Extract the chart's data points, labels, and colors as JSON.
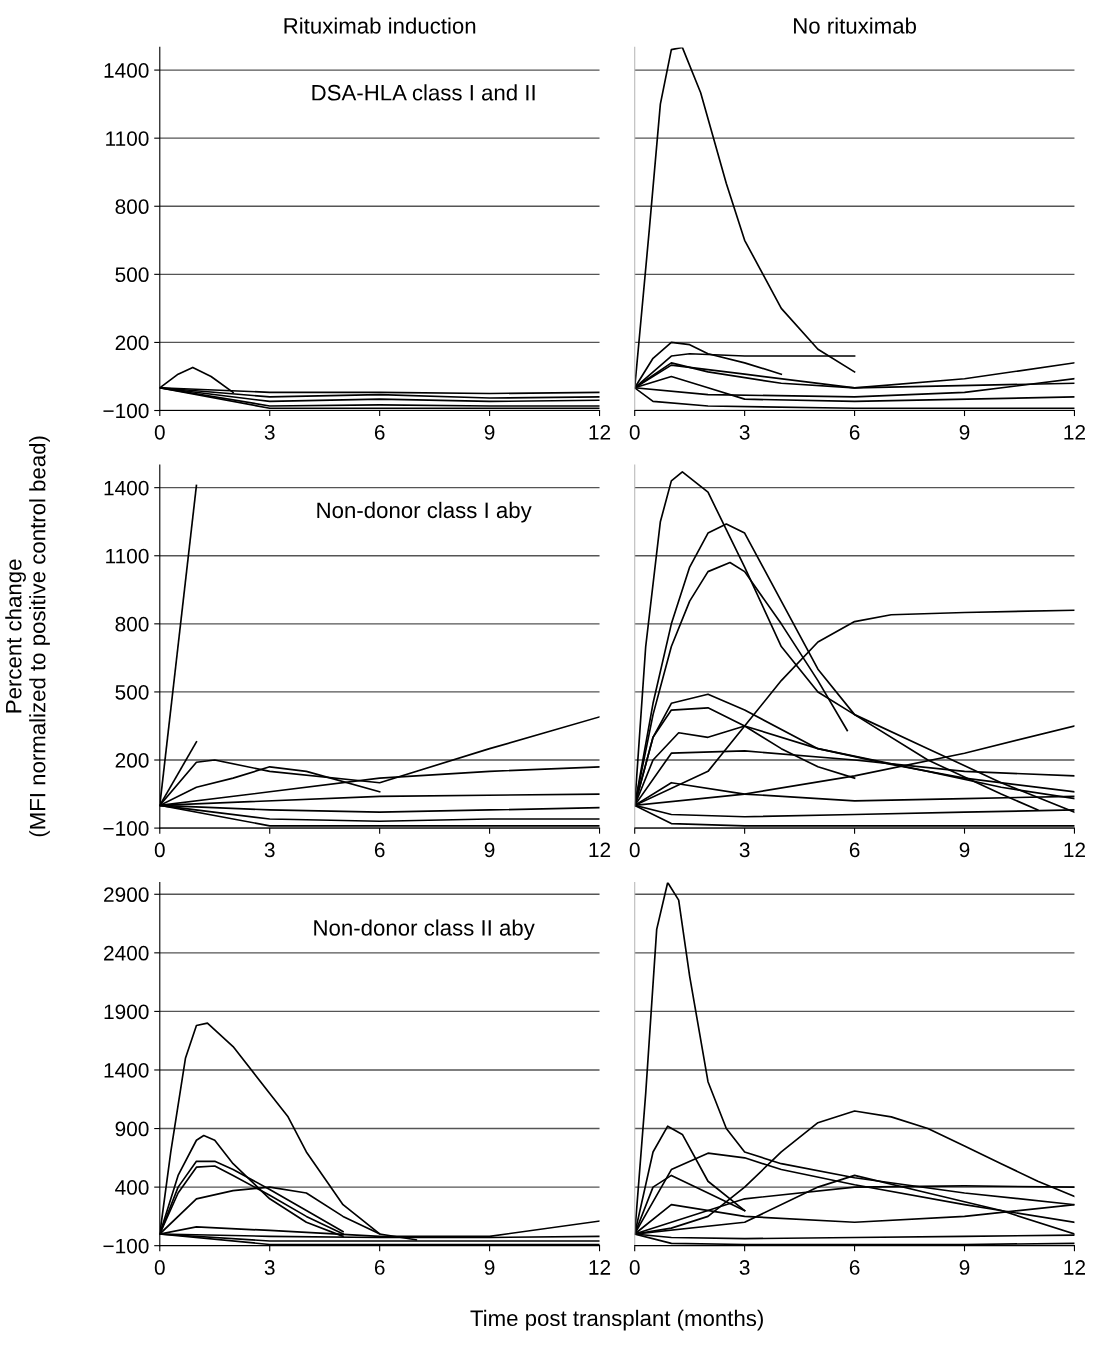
{
  "chart_data": [
    {
      "type": "line",
      "title": "Rituximab induction",
      "annotations": [
        "DSA-HLA class I and II"
      ],
      "xlim": [
        0,
        12
      ],
      "xticks": [
        0,
        3,
        6,
        9,
        12
      ],
      "ylim": [
        -100,
        1500
      ],
      "yticks": [
        {
          "value": -100,
          "label": "−100"
        },
        200,
        500,
        800,
        1100,
        1400
      ],
      "grid": "y",
      "line_style": "solid",
      "series": [
        {
          "color": "#000000",
          "x": [
            0,
            0.5,
            0.9,
            1.4,
            2
          ],
          "values": [
            0,
            60,
            90,
            50,
            -20
          ]
        },
        {
          "color": "#000000",
          "x": [
            0,
            3,
            6,
            9,
            12
          ],
          "values": [
            0,
            -20,
            -20,
            -25,
            -20
          ]
        },
        {
          "color": "#000000",
          "x": [
            0,
            3,
            6,
            9,
            12
          ],
          "values": [
            0,
            -40,
            -30,
            -45,
            -40
          ]
        },
        {
          "color": "#000000",
          "x": [
            0,
            3,
            6,
            9,
            12
          ],
          "values": [
            0,
            -60,
            -50,
            -60,
            -55
          ]
        },
        {
          "color": "#000000",
          "x": [
            0,
            3,
            6,
            9,
            12
          ],
          "values": [
            0,
            -80,
            -75,
            -80,
            -80
          ]
        },
        {
          "color": "#000000",
          "x": [
            0,
            3,
            6,
            9,
            12
          ],
          "values": [
            0,
            -90,
            -90,
            -90,
            -90
          ]
        }
      ]
    },
    {
      "type": "line",
      "title": "No rituximab",
      "xlim": [
        0,
        12
      ],
      "xticks": [
        0,
        3,
        6,
        9,
        12
      ],
      "ylim": [
        -100,
        1500
      ],
      "yticks": [
        {
          "value": -100,
          "label": null
        },
        {
          "value": 200,
          "label": null
        },
        {
          "value": 500,
          "label": null
        },
        {
          "value": 800,
          "label": null
        },
        {
          "value": 1100,
          "label": null
        },
        {
          "value": 1400,
          "label": null
        }
      ],
      "grid": "y",
      "tick_labels": "x",
      "line_style": "solid",
      "series": [
        {
          "color": "#000000",
          "x": [
            0,
            0.4,
            0.7,
            1,
            1.3,
            1.8,
            2.5,
            3,
            4,
            5,
            6
          ],
          "values": [
            0,
            700,
            1250,
            1490,
            1500,
            1300,
            900,
            650,
            350,
            170,
            70
          ]
        },
        {
          "color": "#000000",
          "x": [
            0,
            0.5,
            1,
            1.5,
            2,
            3,
            4
          ],
          "values": [
            0,
            130,
            200,
            190,
            150,
            110,
            60
          ]
        },
        {
          "color": "#000000",
          "x": [
            0,
            1,
            1.5,
            3,
            6
          ],
          "values": [
            0,
            140,
            150,
            140,
            140
          ]
        },
        {
          "color": "#000000",
          "x": [
            0,
            1,
            2,
            4,
            6,
            9,
            12
          ],
          "values": [
            0,
            110,
            70,
            20,
            0,
            40,
            110
          ]
        },
        {
          "color": "#000000",
          "x": [
            0,
            1,
            2,
            3,
            6,
            12
          ],
          "values": [
            0,
            50,
            0,
            -50,
            -60,
            -40
          ]
        },
        {
          "color": "#000000",
          "x": [
            0,
            2,
            6,
            9,
            12
          ],
          "values": [
            0,
            -30,
            -40,
            -20,
            40
          ]
        },
        {
          "color": "#000000",
          "x": [
            0,
            1,
            3,
            6,
            12
          ],
          "values": [
            0,
            100,
            60,
            0,
            20
          ]
        },
        {
          "color": "#000000",
          "x": [
            0,
            0.5,
            2,
            6,
            12
          ],
          "values": [
            0,
            -60,
            -80,
            -90,
            -90
          ]
        }
      ]
    },
    {
      "type": "line",
      "ylabel": "Percent change\n(MFI normalized to positive control bead)",
      "annotations": [
        "Non-donor class I aby"
      ],
      "xlim": [
        0,
        12
      ],
      "xticks": [
        0,
        3,
        6,
        9,
        12
      ],
      "ylim": [
        -100,
        1500
      ],
      "yticks": [
        {
          "value": -100,
          "label": "−100"
        },
        200,
        500,
        800,
        1100,
        1400
      ],
      "grid": "y",
      "line_style": "solid",
      "series": [
        {
          "color": "#000000",
          "x": [
            0,
            1
          ],
          "values": [
            0,
            1410
          ]
        },
        {
          "color": "#000000",
          "x": [
            0,
            1
          ],
          "values": [
            0,
            280
          ]
        },
        {
          "color": "#000000",
          "x": [
            0,
            1,
            1.5,
            3,
            6,
            9,
            12
          ],
          "values": [
            0,
            190,
            200,
            150,
            100,
            250,
            390
          ]
        },
        {
          "color": "#000000",
          "x": [
            0,
            1,
            2,
            3,
            4,
            6
          ],
          "values": [
            0,
            80,
            120,
            170,
            150,
            60
          ]
        },
        {
          "color": "#000000",
          "x": [
            0,
            3,
            6,
            9,
            12
          ],
          "values": [
            0,
            60,
            120,
            150,
            170
          ]
        },
        {
          "color": "#000000",
          "x": [
            0,
            6,
            12
          ],
          "values": [
            0,
            40,
            50
          ]
        },
        {
          "color": "#000000",
          "x": [
            0,
            3,
            6,
            9,
            12
          ],
          "values": [
            0,
            -20,
            -30,
            -20,
            -10
          ]
        },
        {
          "color": "#000000",
          "x": [
            0,
            3,
            6,
            9,
            12
          ],
          "values": [
            0,
            -60,
            -70,
            -60,
            -60
          ]
        },
        {
          "color": "#000000",
          "x": [
            0,
            3,
            6,
            9,
            12
          ],
          "values": [
            0,
            -90,
            -90,
            -90,
            -90
          ]
        }
      ]
    },
    {
      "type": "line",
      "xlim": [
        0,
        12
      ],
      "xticks": [
        0,
        3,
        6,
        9,
        12
      ],
      "ylim": [
        -100,
        1500
      ],
      "yticks": [
        {
          "value": -100,
          "label": null
        },
        {
          "value": 200,
          "label": null
        },
        {
          "value": 500,
          "label": null
        },
        {
          "value": 800,
          "label": null
        },
        {
          "value": 1100,
          "label": null
        },
        {
          "value": 1400,
          "label": null
        }
      ],
      "grid": "y",
      "tick_labels": "x",
      "line_style": "solid",
      "series": [
        {
          "color": "#000000",
          "x": [
            0,
            0.3,
            0.7,
            1,
            1.3,
            2,
            3,
            4,
            5,
            6,
            8,
            10,
            12
          ],
          "values": [
            0,
            700,
            1250,
            1430,
            1470,
            1380,
            1050,
            700,
            500,
            400,
            250,
            100,
            -30
          ]
        },
        {
          "color": "#000000",
          "x": [
            0,
            0.5,
            1,
            1.5,
            2,
            2.5,
            3,
            4,
            5,
            6,
            8,
            10,
            11
          ],
          "values": [
            0,
            450,
            800,
            1050,
            1200,
            1240,
            1200,
            900,
            600,
            400,
            200,
            50,
            -20
          ]
        },
        {
          "color": "#000000",
          "x": [
            0,
            0.5,
            1,
            1.5,
            2,
            2.6,
            3,
            4,
            5,
            5.8
          ],
          "values": [
            0,
            400,
            700,
            900,
            1030,
            1070,
            1030,
            800,
            550,
            330
          ]
        },
        {
          "color": "#000000",
          "x": [
            0,
            2,
            3,
            4,
            5,
            6,
            7,
            9,
            12
          ],
          "values": [
            0,
            150,
            350,
            550,
            720,
            810,
            840,
            850,
            860
          ]
        },
        {
          "color": "#000000",
          "x": [
            0,
            3,
            6,
            9,
            12
          ],
          "values": [
            0,
            50,
            130,
            230,
            350
          ]
        },
        {
          "color": "#000000",
          "x": [
            0,
            0.5,
            1,
            2,
            3,
            5,
            7,
            9,
            12
          ],
          "values": [
            0,
            300,
            450,
            490,
            420,
            250,
            180,
            120,
            60
          ]
        },
        {
          "color": "#000000",
          "x": [
            0,
            0.5,
            1,
            2,
            3,
            4,
            5,
            6
          ],
          "values": [
            0,
            300,
            420,
            430,
            350,
            250,
            170,
            120
          ]
        },
        {
          "color": "#000000",
          "x": [
            0,
            0.5,
            1.2,
            2,
            3,
            5,
            8,
            10,
            12
          ],
          "values": [
            0,
            200,
            320,
            300,
            350,
            250,
            150,
            80,
            30
          ]
        },
        {
          "color": "#000000",
          "x": [
            0,
            1,
            3,
            6,
            9,
            12
          ],
          "values": [
            0,
            230,
            240,
            200,
            150,
            130
          ]
        },
        {
          "color": "#000000",
          "x": [
            0,
            1,
            3,
            6,
            9,
            12
          ],
          "values": [
            0,
            100,
            50,
            20,
            30,
            40
          ]
        },
        {
          "color": "#000000",
          "x": [
            0,
            1,
            3,
            6,
            9,
            12
          ],
          "values": [
            0,
            -40,
            -50,
            -40,
            -30,
            -20
          ]
        },
        {
          "color": "#000000",
          "x": [
            0,
            1,
            3,
            6,
            9,
            12
          ],
          "values": [
            0,
            -80,
            -90,
            -90,
            -90,
            -90
          ]
        }
      ]
    },
    {
      "type": "line",
      "xlabel": "Time post transplant (months)",
      "annotations": [
        "Non-donor class II aby"
      ],
      "xlim": [
        0,
        12
      ],
      "xticks": [
        0,
        3,
        6,
        9,
        12
      ],
      "ylim": [
        -100,
        3000
      ],
      "yticks": [
        {
          "value": -100,
          "label": "−100"
        },
        400,
        900,
        1400,
        1900,
        2400,
        2900
      ],
      "grid": "y",
      "line_style": "solid",
      "series": [
        {
          "color": "#000000",
          "x": [
            0,
            0.3,
            0.7,
            1,
            1.3,
            2,
            3,
            3.5,
            4,
            5,
            6,
            7
          ],
          "values": [
            0,
            700,
            1500,
            1780,
            1800,
            1600,
            1200,
            1000,
            700,
            250,
            0,
            -50
          ]
        },
        {
          "color": "#000000",
          "x": [
            0,
            0.5,
            1,
            1.2,
            1.5,
            2,
            3,
            4,
            5
          ],
          "values": [
            0,
            500,
            800,
            840,
            800,
            600,
            300,
            100,
            -20
          ]
        },
        {
          "color": "#000000",
          "x": [
            0,
            0.5,
            1,
            1.5,
            2,
            3,
            4,
            5
          ],
          "values": [
            0,
            400,
            620,
            620,
            550,
            380,
            200,
            20
          ]
        },
        {
          "color": "#000000",
          "x": [
            0,
            0.5,
            1,
            1.5,
            2,
            3,
            4,
            5
          ],
          "values": [
            0,
            350,
            570,
            580,
            500,
            330,
            150,
            0
          ]
        },
        {
          "color": "#000000",
          "x": [
            0,
            1,
            2,
            3,
            4,
            5,
            6
          ],
          "values": [
            0,
            300,
            370,
            400,
            350,
            150,
            0
          ]
        },
        {
          "color": "#000000",
          "x": [
            0,
            1,
            3,
            6,
            9,
            12
          ],
          "values": [
            0,
            60,
            30,
            -20,
            -20,
            110
          ]
        },
        {
          "color": "#000000",
          "x": [
            0,
            3,
            6,
            9,
            12
          ],
          "values": [
            0,
            -20,
            -30,
            -30,
            -20
          ]
        },
        {
          "color": "#000000",
          "x": [
            0,
            3,
            6,
            9,
            12
          ],
          "values": [
            0,
            -60,
            -60,
            -60,
            -60
          ]
        },
        {
          "color": "#000000",
          "x": [
            0,
            3,
            6,
            9,
            12
          ],
          "values": [
            0,
            -90,
            -90,
            -90,
            -90
          ]
        }
      ]
    },
    {
      "type": "line",
      "xlim": [
        0,
        12
      ],
      "xticks": [
        0,
        3,
        6,
        9,
        12
      ],
      "ylim": [
        -100,
        3000
      ],
      "yticks": [
        {
          "value": -100,
          "label": null
        },
        {
          "value": 400,
          "label": null
        },
        {
          "value": 900,
          "label": null
        },
        {
          "value": 1400,
          "label": null
        },
        {
          "value": 1900,
          "label": null
        },
        {
          "value": 2400,
          "label": null
        },
        {
          "value": 2900,
          "label": null
        }
      ],
      "grid": "y",
      "tick_labels": "x",
      "line_style": "solid",
      "series": [
        {
          "color": "#000000",
          "x": [
            0,
            0.3,
            0.6,
            0.9,
            1.2,
            1.5,
            2,
            2.5,
            3,
            4,
            6,
            9,
            12
          ],
          "values": [
            0,
            1200,
            2600,
            3000,
            2850,
            2200,
            1300,
            900,
            700,
            600,
            480,
            350,
            250
          ]
        },
        {
          "color": "#000000",
          "x": [
            0,
            1,
            2,
            3,
            4,
            5,
            6,
            7,
            8,
            9,
            10,
            11,
            12
          ],
          "values": [
            0,
            50,
            150,
            400,
            700,
            950,
            1050,
            1000,
            900,
            750,
            600,
            450,
            320
          ]
        },
        {
          "color": "#000000",
          "x": [
            0,
            0.5,
            0.9,
            1.3,
            2,
            3
          ],
          "values": [
            0,
            700,
            920,
            850,
            450,
            200
          ]
        },
        {
          "color": "#000000",
          "x": [
            0,
            1,
            2,
            3,
            4,
            6,
            9,
            12
          ],
          "values": [
            0,
            550,
            690,
            650,
            550,
            420,
            250,
            100
          ]
        },
        {
          "color": "#000000",
          "x": [
            0,
            3,
            6,
            9,
            12
          ],
          "values": [
            0,
            300,
            400,
            410,
            400
          ]
        },
        {
          "color": "#000000",
          "x": [
            0,
            0.5,
            1,
            2,
            3
          ],
          "values": [
            0,
            400,
            500,
            350,
            200
          ]
        },
        {
          "color": "#000000",
          "x": [
            0,
            3,
            5,
            6,
            8,
            10,
            12
          ],
          "values": [
            0,
            100,
            400,
            500,
            350,
            200,
            0
          ]
        },
        {
          "color": "#000000",
          "x": [
            0,
            1,
            3,
            6,
            9,
            12
          ],
          "values": [
            0,
            250,
            150,
            100,
            150,
            250
          ]
        },
        {
          "color": "#000000",
          "x": [
            0,
            1,
            3,
            6,
            9,
            12
          ],
          "values": [
            0,
            -30,
            -40,
            -30,
            -20,
            -10
          ]
        },
        {
          "color": "#000000",
          "x": [
            0,
            1,
            3,
            6,
            9,
            12
          ],
          "values": [
            0,
            -80,
            -90,
            -90,
            -90,
            -80
          ]
        }
      ]
    }
  ]
}
